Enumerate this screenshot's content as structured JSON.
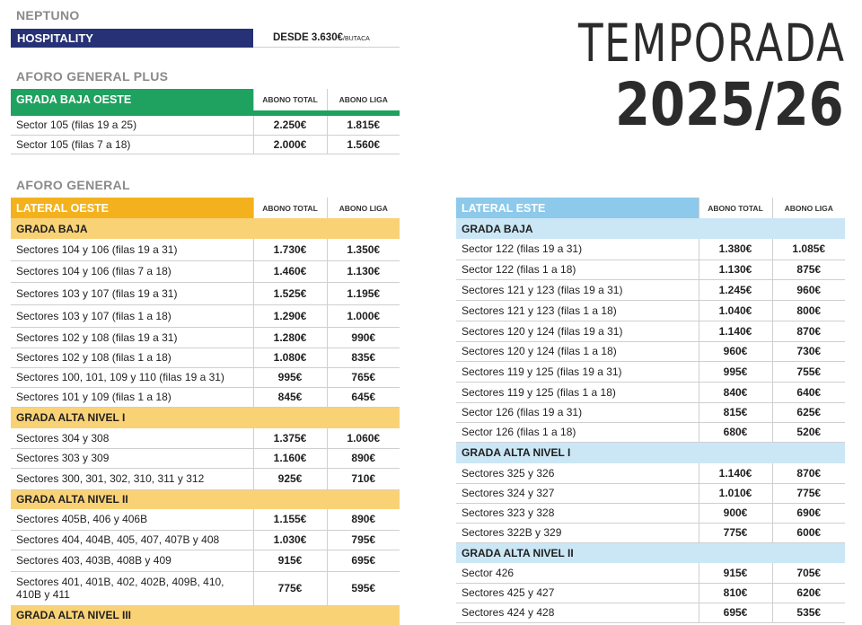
{
  "title": {
    "line1": "TEMPORADA",
    "line2": "2025/26"
  },
  "neptuno": {
    "label": "NEPTUNO",
    "hospitality": {
      "name": "HOSPITALITY",
      "price": "DESDE 3.630€",
      "unit": "/BUTACA"
    }
  },
  "columns": {
    "total": "ABONO TOTAL",
    "liga": "ABONO LIGA"
  },
  "aforo_plus": {
    "label": "AFORO GENERAL PLUS",
    "grada": "GRADA BAJA OESTE",
    "rows": [
      {
        "name": "Sector 105 (filas 19 a 25)",
        "total": "2.250€",
        "liga": "1.815€"
      },
      {
        "name": "Sector 105 (filas 7 a 18)",
        "total": "2.000€",
        "liga": "1.560€"
      }
    ]
  },
  "aforo_general": {
    "label": "AFORO GENERAL"
  },
  "oeste": {
    "title": "LATERAL OESTE",
    "groups": [
      {
        "name": "GRADA BAJA",
        "rows": [
          {
            "name": "Sectores 104 y 106 (filas 19 a 31)",
            "total": "1.730€",
            "liga": "1.350€"
          },
          {
            "name": "Sectores 104 y 106 (filas 7 a 18)",
            "total": "1.460€",
            "liga": "1.130€"
          },
          {
            "name": "Sectores 103 y 107 (filas 19 a 31)",
            "total": "1.525€",
            "liga": "1.195€"
          },
          {
            "name": "Sectores 103 y 107 (filas 1 a 18)",
            "total": "1.290€",
            "liga": "1.000€"
          },
          {
            "name": "Sectores 102 y 108 (filas 19 a 31)",
            "total": "1.280€",
            "liga": "990€"
          },
          {
            "name": "Sectores 102 y 108 (filas 1 a 18)",
            "total": "1.080€",
            "liga": "835€"
          },
          {
            "name": "Sectores 100, 101, 109 y 110 (filas 19 a 31)",
            "total": "995€",
            "liga": "765€"
          },
          {
            "name": "Sectores 101 y 109 (filas 1 a 18)",
            "total": "845€",
            "liga": "645€"
          }
        ]
      },
      {
        "name": "GRADA ALTA NIVEL I",
        "rows": [
          {
            "name": "Sectores 304 y 308",
            "total": "1.375€",
            "liga": "1.060€"
          },
          {
            "name": "Sectores 303 y 309",
            "total": "1.160€",
            "liga": "890€"
          },
          {
            "name": "Sectores 300, 301, 302, 310, 311 y 312",
            "total": "925€",
            "liga": "710€"
          }
        ]
      },
      {
        "name": "GRADA ALTA NIVEL II",
        "rows": [
          {
            "name": "Sectores 405B, 406 y 406B",
            "total": "1.155€",
            "liga": "890€"
          },
          {
            "name": "Sectores 404, 404B, 405, 407, 407B y 408",
            "total": "1.030€",
            "liga": "795€"
          },
          {
            "name": "Sectores 403, 403B, 408B y 409",
            "total": "915€",
            "liga": "695€"
          },
          {
            "name": "Sectores 401, 401B, 402, 402B, 409B, 410, 410B y 411",
            "total": "775€",
            "liga": "595€"
          }
        ]
      }
    ],
    "cut_label": "GRADA ALTA NIVEL III"
  },
  "este": {
    "title": "LATERAL ESTE",
    "groups": [
      {
        "name": "GRADA BAJA",
        "rows": [
          {
            "name": "Sector 122 (filas 19 a 31)",
            "total": "1.380€",
            "liga": "1.085€"
          },
          {
            "name": "Sector 122 (filas 1 a 18)",
            "total": "1.130€",
            "liga": "875€"
          },
          {
            "name": "Sectores 121 y 123 (filas 19 a 31)",
            "total": "1.245€",
            "liga": "960€"
          },
          {
            "name": "Sectores 121 y 123 (filas 1 a 18)",
            "total": "1.040€",
            "liga": "800€"
          },
          {
            "name": "Sectores 120 y 124 (filas 19 a 31)",
            "total": "1.140€",
            "liga": "870€"
          },
          {
            "name": "Sectores 120 y 124 (filas 1 a 18)",
            "total": "960€",
            "liga": "730€"
          },
          {
            "name": "Sectores 119 y 125 (filas 19 a 31)",
            "total": "995€",
            "liga": "755€"
          },
          {
            "name": "Sectores 119 y 125 (filas 1 a 18)",
            "total": "840€",
            "liga": "640€"
          },
          {
            "name": "Sector 126 (filas 19 a 31)",
            "total": "815€",
            "liga": "625€"
          },
          {
            "name": "Sector 126 (filas 1 a 18)",
            "total": "680€",
            "liga": "520€"
          }
        ]
      },
      {
        "name": "GRADA ALTA NIVEL I",
        "rows": [
          {
            "name": "Sectores 325 y 326",
            "total": "1.140€",
            "liga": "870€"
          },
          {
            "name": "Sectores 324 y 327",
            "total": "1.010€",
            "liga": "775€"
          },
          {
            "name": "Sectores 323 y 328",
            "total": "900€",
            "liga": "690€"
          },
          {
            "name": "Sectores 322B y 329",
            "total": "775€",
            "liga": "600€"
          }
        ]
      },
      {
        "name": "GRADA ALTA NIVEL II",
        "rows": [
          {
            "name": "Sector 426",
            "total": "915€",
            "liga": "705€"
          },
          {
            "name": "Sectores  425 y 427",
            "total": "810€",
            "liga": "620€"
          },
          {
            "name": "Sectores 424 y 428",
            "total": "695€",
            "liga": "535€"
          }
        ]
      }
    ]
  },
  "colors": {
    "hospitality": "#263275",
    "plus": "#1fa25f",
    "oeste": "#f3b21d",
    "oeste_sub": "#fad276",
    "este": "#8dc9ea",
    "este_sub": "#cbe7f6"
  }
}
